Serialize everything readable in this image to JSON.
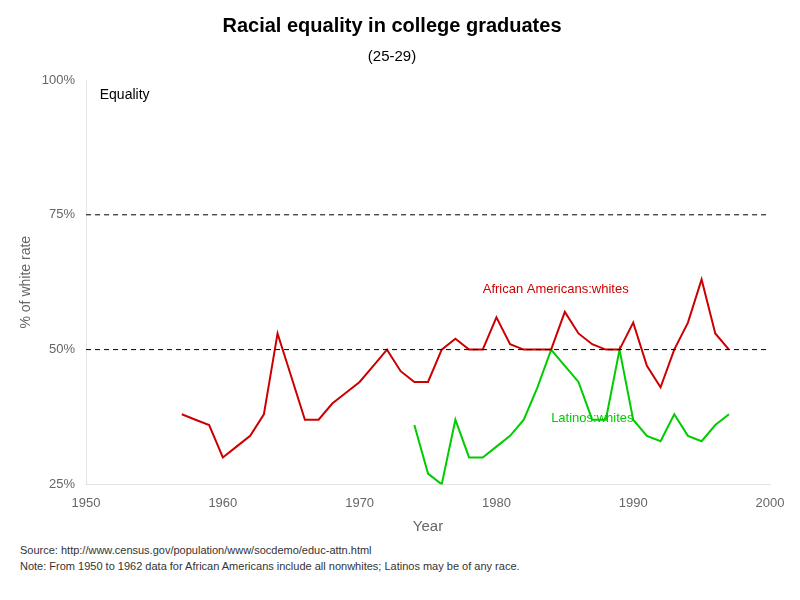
{
  "chart_data": {
    "type": "line",
    "title": "Racial equality in college graduates",
    "subtitle": "(25-29)",
    "xlabel": "Year",
    "ylabel": "% of white rate",
    "xlim": [
      1950,
      2000
    ],
    "ylim": [
      0.25,
      1.0
    ],
    "xticks": [
      1950,
      1960,
      1970,
      1980,
      1990,
      2000
    ],
    "yticks": [
      {
        "value": 0.25,
        "label": "25%"
      },
      {
        "value": 0.5,
        "label": "50%"
      },
      {
        "value": 0.75,
        "label": "75%"
      },
      {
        "value": 1.0,
        "label": "100%"
      }
    ],
    "grid": false,
    "series": [
      {
        "name": "African Americans:whites",
        "color": "#cc0000",
        "label_at": [
          1979,
          0.605
        ],
        "x": [
          1957,
          1958,
          1959,
          1960,
          1961,
          1962,
          1963,
          1964,
          1965,
          1966,
          1967,
          1968,
          1969,
          1970,
          1971,
          1972,
          1973,
          1974,
          1975,
          1976,
          1977,
          1978,
          1979,
          1980,
          1981,
          1982,
          1983,
          1984,
          1985,
          1986,
          1987,
          1988,
          1989,
          1990,
          1991,
          1992,
          1993,
          1994,
          1995,
          1996,
          1997
        ],
        "values": [
          0.38,
          0.37,
          0.36,
          0.3,
          0.32,
          0.34,
          0.38,
          0.53,
          0.45,
          0.37,
          0.37,
          0.4,
          0.42,
          0.44,
          0.47,
          0.5,
          0.46,
          0.44,
          0.44,
          0.5,
          0.52,
          0.5,
          0.5,
          0.56,
          0.51,
          0.5,
          0.5,
          0.5,
          0.57,
          0.53,
          0.51,
          0.5,
          0.5,
          0.55,
          0.47,
          0.43,
          0.5,
          0.55,
          0.63,
          0.53,
          0.5
        ]
      },
      {
        "name": "Latinos:whites",
        "color": "#00cc00",
        "label_at": [
          1984,
          0.365
        ],
        "x": [
          1974,
          1975,
          1976,
          1977,
          1978,
          1979,
          1980,
          1981,
          1982,
          1983,
          1984,
          1985,
          1986,
          1987,
          1988,
          1989,
          1990,
          1991,
          1992,
          1993,
          1994,
          1995,
          1996,
          1997
        ],
        "values": [
          0.36,
          0.27,
          0.25,
          0.37,
          0.3,
          0.3,
          0.32,
          0.34,
          0.37,
          0.43,
          0.5,
          0.47,
          0.44,
          0.37,
          0.37,
          0.5,
          0.37,
          0.34,
          0.33,
          0.38,
          0.34,
          0.33,
          0.36,
          0.38
        ]
      }
    ],
    "reference_lines": [
      {
        "y": 0.75,
        "color": "#000000",
        "line_style": "dashed"
      },
      {
        "y": 0.5,
        "color": "#000000",
        "line_style": "dashed"
      }
    ],
    "annotations": [
      {
        "text": "Equality",
        "x": 1951,
        "y": 0.985
      }
    ],
    "source": "Source:  http://www.census.gov/population/www/socdemo/educ-attn.html",
    "note": "Note:  From 1950 to 1962 data for African Americans include all nonwhites;  Latinos may be of any race."
  }
}
